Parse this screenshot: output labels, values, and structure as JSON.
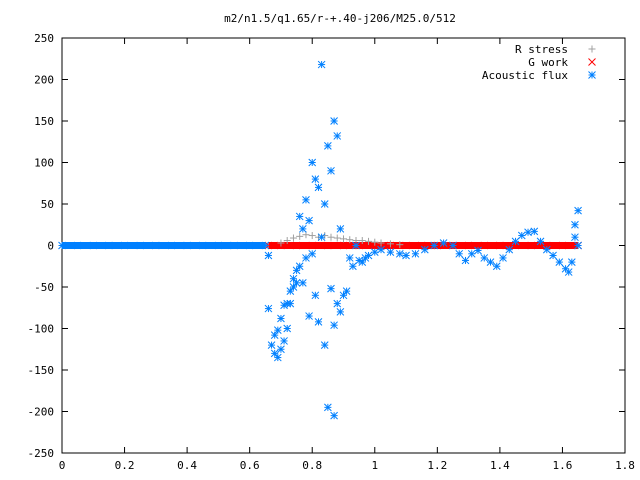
{
  "chart_data": {
    "type": "scatter",
    "title": "m2/n1.5/q1.65/r-+.40-j206/M25.0/512",
    "xlabel": "",
    "ylabel": "",
    "xlim": [
      0,
      1.8
    ],
    "ylim": [
      -250,
      250
    ],
    "xticks": [
      0,
      0.2,
      0.4,
      0.6,
      0.8,
      1,
      1.2,
      1.4,
      1.6,
      1.8
    ],
    "yticks": [
      -250,
      -200,
      -150,
      -100,
      -50,
      0,
      50,
      100,
      150,
      200,
      250
    ],
    "xtick_labels": [
      "0",
      "0.2",
      "0.4",
      "0.6",
      "0.8",
      "1",
      "1.2",
      "1.4",
      "1.6",
      "1.8"
    ],
    "ytick_labels": [
      "-250",
      "-200",
      "-150",
      "-100",
      "-50",
      "0",
      "50",
      "100",
      "150",
      "200",
      "250"
    ],
    "grid": false,
    "legend_position": "top-right",
    "series": [
      {
        "name": "R stress",
        "marker": "plus",
        "color": "#a0a0a0",
        "points": [
          [
            0.7,
            3
          ],
          [
            0.72,
            6
          ],
          [
            0.74,
            9
          ],
          [
            0.76,
            11
          ],
          [
            0.78,
            13
          ],
          [
            0.8,
            12
          ],
          [
            0.82,
            10
          ],
          [
            0.84,
            12
          ],
          [
            0.86,
            10
          ],
          [
            0.88,
            9
          ],
          [
            0.9,
            8
          ],
          [
            0.92,
            7
          ],
          [
            0.94,
            6
          ],
          [
            0.96,
            6
          ],
          [
            0.98,
            5
          ],
          [
            1.0,
            4
          ],
          [
            1.02,
            3
          ],
          [
            1.05,
            2
          ],
          [
            1.08,
            1
          ]
        ]
      },
      {
        "name": "G work",
        "marker": "cross",
        "color": "#ff0000",
        "points": [
          [
            0.66,
            0
          ],
          [
            0.7,
            0
          ],
          [
            0.75,
            0
          ],
          [
            0.8,
            0
          ],
          [
            0.85,
            0
          ],
          [
            0.9,
            0
          ],
          [
            0.95,
            0
          ],
          [
            1.0,
            0
          ],
          [
            1.05,
            0
          ],
          [
            1.1,
            0
          ],
          [
            1.15,
            0
          ],
          [
            1.2,
            0
          ],
          [
            1.25,
            0
          ],
          [
            1.3,
            0
          ],
          [
            1.35,
            0
          ],
          [
            1.4,
            0
          ],
          [
            1.45,
            0
          ],
          [
            1.5,
            0
          ],
          [
            1.55,
            0
          ],
          [
            1.6,
            0
          ],
          [
            1.65,
            0
          ]
        ]
      },
      {
        "name": "Acoustic flux",
        "marker": "star",
        "color": "#0080ff",
        "points": [
          [
            0.0,
            0
          ],
          [
            0.05,
            0
          ],
          [
            0.1,
            0
          ],
          [
            0.15,
            0
          ],
          [
            0.2,
            0
          ],
          [
            0.25,
            0
          ],
          [
            0.3,
            0
          ],
          [
            0.35,
            0
          ],
          [
            0.4,
            0
          ],
          [
            0.45,
            0
          ],
          [
            0.5,
            0
          ],
          [
            0.55,
            0
          ],
          [
            0.6,
            0
          ],
          [
            0.65,
            0
          ],
          [
            0.66,
            -12
          ],
          [
            0.66,
            -76
          ],
          [
            0.67,
            -120
          ],
          [
            0.68,
            -108
          ],
          [
            0.68,
            -130
          ],
          [
            0.69,
            -135
          ],
          [
            0.69,
            -102
          ],
          [
            0.7,
            -125
          ],
          [
            0.7,
            -88
          ],
          [
            0.71,
            -72
          ],
          [
            0.71,
            -115
          ],
          [
            0.72,
            -70
          ],
          [
            0.72,
            -100
          ],
          [
            0.73,
            -55
          ],
          [
            0.73,
            -70
          ],
          [
            0.74,
            -40
          ],
          [
            0.74,
            -50
          ],
          [
            0.75,
            -45
          ],
          [
            0.75,
            -30
          ],
          [
            0.76,
            35
          ],
          [
            0.76,
            -25
          ],
          [
            0.77,
            20
          ],
          [
            0.77,
            -45
          ],
          [
            0.78,
            -15
          ],
          [
            0.78,
            55
          ],
          [
            0.79,
            -85
          ],
          [
            0.79,
            30
          ],
          [
            0.8,
            100
          ],
          [
            0.8,
            -10
          ],
          [
            0.81,
            80
          ],
          [
            0.81,
            -60
          ],
          [
            0.82,
            -92
          ],
          [
            0.82,
            70
          ],
          [
            0.83,
            218
          ],
          [
            0.83,
            10
          ],
          [
            0.84,
            -120
          ],
          [
            0.84,
            50
          ],
          [
            0.85,
            120
          ],
          [
            0.85,
            -195
          ],
          [
            0.86,
            90
          ],
          [
            0.86,
            -52
          ],
          [
            0.87,
            -96
          ],
          [
            0.87,
            -205
          ],
          [
            0.87,
            150
          ],
          [
            0.88,
            132
          ],
          [
            0.88,
            -70
          ],
          [
            0.89,
            20
          ],
          [
            0.89,
            -80
          ],
          [
            0.9,
            -60
          ],
          [
            0.91,
            -55
          ],
          [
            0.92,
            -15
          ],
          [
            0.93,
            -25
          ],
          [
            0.94,
            0
          ],
          [
            0.95,
            -18
          ],
          [
            0.96,
            -20
          ],
          [
            0.97,
            -15
          ],
          [
            0.98,
            -12
          ],
          [
            1.0,
            -8
          ],
          [
            1.02,
            -5
          ],
          [
            1.05,
            -8
          ],
          [
            1.08,
            -10
          ],
          [
            1.1,
            -12
          ],
          [
            1.13,
            -10
          ],
          [
            1.16,
            -5
          ],
          [
            1.19,
            0
          ],
          [
            1.22,
            3
          ],
          [
            1.25,
            0
          ],
          [
            1.27,
            -10
          ],
          [
            1.29,
            -18
          ],
          [
            1.31,
            -10
          ],
          [
            1.33,
            -6
          ],
          [
            1.35,
            -15
          ],
          [
            1.37,
            -20
          ],
          [
            1.39,
            -25
          ],
          [
            1.41,
            -15
          ],
          [
            1.43,
            -5
          ],
          [
            1.45,
            5
          ],
          [
            1.47,
            12
          ],
          [
            1.49,
            16
          ],
          [
            1.51,
            17
          ],
          [
            1.53,
            5
          ],
          [
            1.55,
            -5
          ],
          [
            1.57,
            -12
          ],
          [
            1.59,
            -20
          ],
          [
            1.61,
            -28
          ],
          [
            1.62,
            -32
          ],
          [
            1.63,
            -20
          ],
          [
            1.64,
            10
          ],
          [
            1.64,
            25
          ],
          [
            1.65,
            42
          ],
          [
            1.65,
            0
          ]
        ]
      }
    ]
  }
}
